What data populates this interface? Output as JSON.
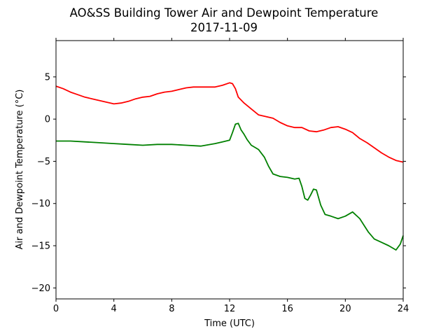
{
  "chart_data": {
    "type": "line",
    "title": "AO&SS Building Tower Air and Dewpoint Temperature",
    "subtitle": "2017-11-09",
    "xlabel": "Time (UTC)",
    "ylabel": "Air and Dewpoint Temperature (°C)",
    "xlim": [
      0,
      24
    ],
    "ylim": [
      -21.3,
      9.3
    ],
    "xticks": [
      "0",
      "4",
      "8",
      "12",
      "16",
      "20",
      "24"
    ],
    "yticks": [
      "5",
      "0",
      "−5",
      "−10",
      "−15",
      "−20"
    ],
    "xtick_values": [
      0,
      4,
      8,
      12,
      16,
      20,
      24
    ],
    "ytick_values": [
      5,
      0,
      -5,
      -10,
      -15,
      -20
    ],
    "grid": false,
    "legend": "none",
    "series": [
      {
        "color": "#ff0000",
        "points": [
          [
            0,
            3.9
          ],
          [
            0.5,
            3.6
          ],
          [
            1,
            3.2
          ],
          [
            1.5,
            2.9
          ],
          [
            2,
            2.6
          ],
          [
            2.5,
            2.4
          ],
          [
            3,
            2.2
          ],
          [
            3.5,
            2.0
          ],
          [
            4,
            1.8
          ],
          [
            4.5,
            1.9
          ],
          [
            5,
            2.1
          ],
          [
            5.5,
            2.4
          ],
          [
            6,
            2.6
          ],
          [
            6.5,
            2.7
          ],
          [
            7,
            3.0
          ],
          [
            7.5,
            3.2
          ],
          [
            8,
            3.3
          ],
          [
            8.5,
            3.5
          ],
          [
            9,
            3.7
          ],
          [
            9.5,
            3.8
          ],
          [
            10,
            3.8
          ],
          [
            10.5,
            3.8
          ],
          [
            11,
            3.8
          ],
          [
            11.5,
            4.0
          ],
          [
            12,
            4.3
          ],
          [
            12.2,
            4.2
          ],
          [
            12.4,
            3.6
          ],
          [
            12.6,
            2.6
          ],
          [
            13,
            1.9
          ],
          [
            13.5,
            1.2
          ],
          [
            14,
            0.5
          ],
          [
            14.5,
            0.3
          ],
          [
            15,
            0.1
          ],
          [
            15.5,
            -0.4
          ],
          [
            16,
            -0.8
          ],
          [
            16.5,
            -1.0
          ],
          [
            17,
            -1.0
          ],
          [
            17.5,
            -1.4
          ],
          [
            18,
            -1.5
          ],
          [
            18.5,
            -1.3
          ],
          [
            19,
            -1.0
          ],
          [
            19.5,
            -0.9
          ],
          [
            20,
            -1.2
          ],
          [
            20.5,
            -1.6
          ],
          [
            21,
            -2.3
          ],
          [
            21.5,
            -2.8
          ],
          [
            22,
            -3.4
          ],
          [
            22.5,
            -4.0
          ],
          [
            23,
            -4.5
          ],
          [
            23.5,
            -4.9
          ],
          [
            24,
            -5.1
          ]
        ]
      },
      {
        "color": "#008000",
        "points": [
          [
            0,
            -2.6
          ],
          [
            1,
            -2.6
          ],
          [
            2,
            -2.7
          ],
          [
            3,
            -2.8
          ],
          [
            4,
            -2.9
          ],
          [
            5,
            -3.0
          ],
          [
            6,
            -3.1
          ],
          [
            7,
            -3.0
          ],
          [
            8,
            -3.0
          ],
          [
            9,
            -3.1
          ],
          [
            10,
            -3.2
          ],
          [
            11,
            -2.9
          ],
          [
            11.5,
            -2.7
          ],
          [
            12,
            -2.5
          ],
          [
            12.2,
            -1.6
          ],
          [
            12.4,
            -0.6
          ],
          [
            12.6,
            -0.5
          ],
          [
            12.8,
            -1.3
          ],
          [
            13,
            -1.8
          ],
          [
            13.2,
            -2.4
          ],
          [
            13.5,
            -3.1
          ],
          [
            13.8,
            -3.4
          ],
          [
            14,
            -3.6
          ],
          [
            14.4,
            -4.5
          ],
          [
            14.7,
            -5.6
          ],
          [
            15,
            -6.5
          ],
          [
            15.5,
            -6.8
          ],
          [
            16,
            -6.9
          ],
          [
            16.5,
            -7.1
          ],
          [
            16.8,
            -7.0
          ],
          [
            17,
            -8.0
          ],
          [
            17.2,
            -9.4
          ],
          [
            17.4,
            -9.6
          ],
          [
            17.6,
            -9.0
          ],
          [
            17.8,
            -8.3
          ],
          [
            18,
            -8.4
          ],
          [
            18.3,
            -10.2
          ],
          [
            18.6,
            -11.3
          ],
          [
            19,
            -11.5
          ],
          [
            19.5,
            -11.8
          ],
          [
            20,
            -11.5
          ],
          [
            20.5,
            -11.0
          ],
          [
            21,
            -11.8
          ],
          [
            21.3,
            -12.6
          ],
          [
            21.6,
            -13.4
          ],
          [
            22,
            -14.2
          ],
          [
            22.5,
            -14.6
          ],
          [
            23,
            -15.0
          ],
          [
            23.5,
            -15.5
          ],
          [
            23.8,
            -14.8
          ],
          [
            24,
            -13.8
          ]
        ]
      }
    ]
  }
}
